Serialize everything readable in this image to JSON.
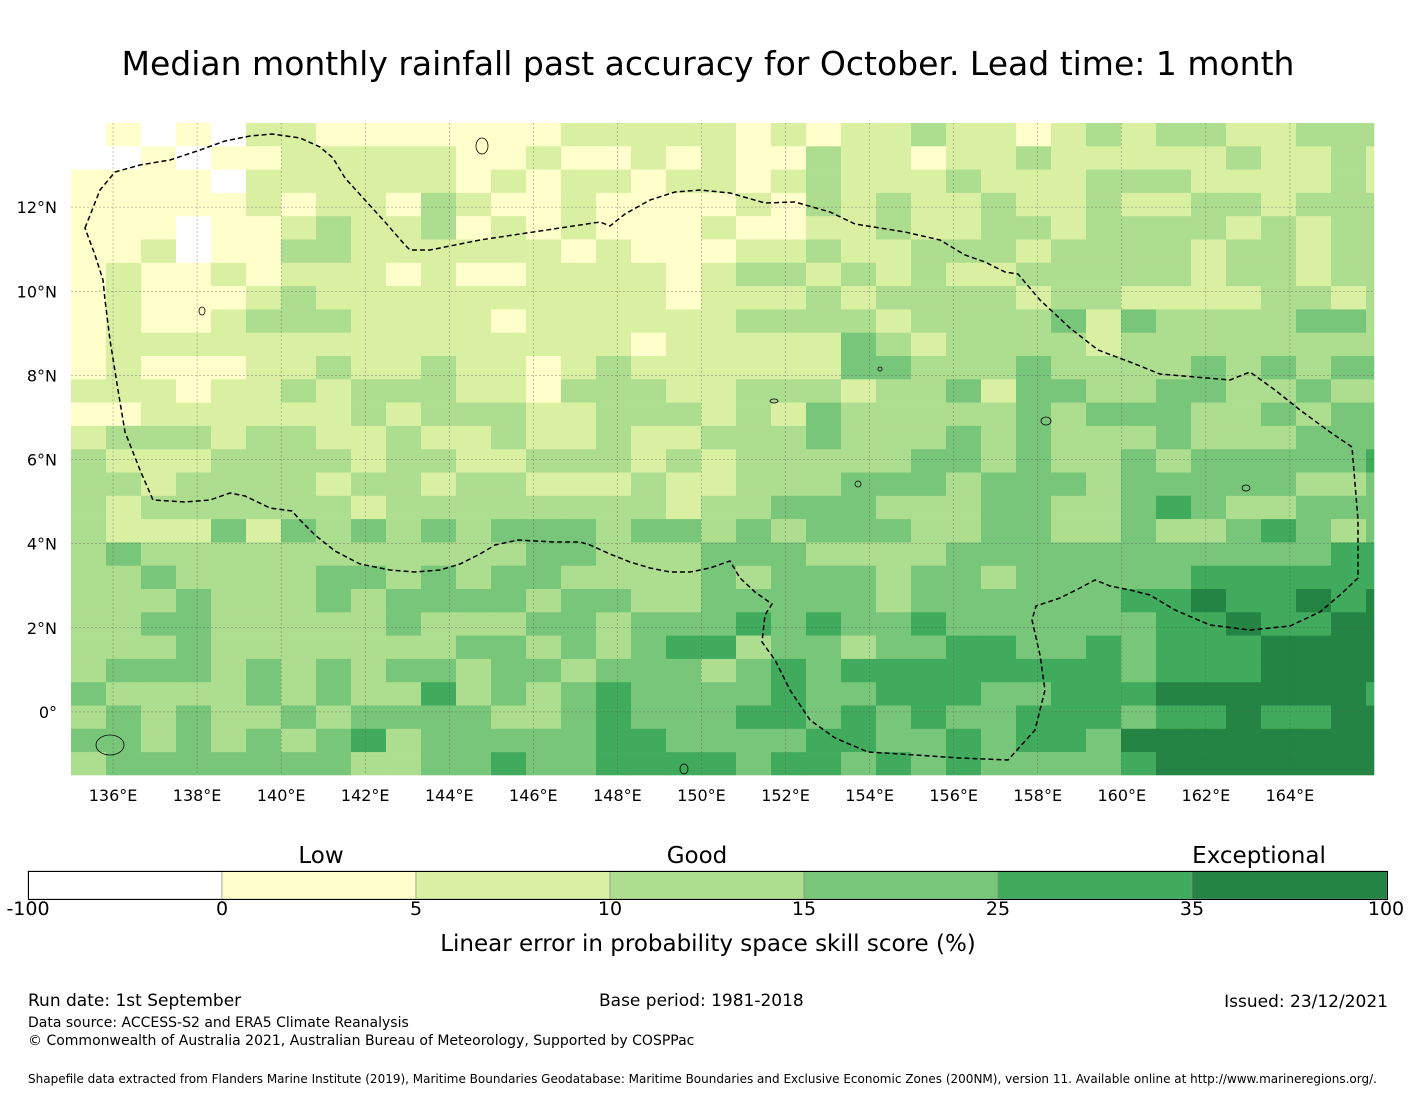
{
  "title": "Median monthly rainfall past accuracy for October. Lead time: 1 month",
  "map": {
    "lon_ticks": [
      "136°E",
      "138°E",
      "140°E",
      "142°E",
      "144°E",
      "146°E",
      "148°E",
      "150°E",
      "152°E",
      "154°E",
      "156°E",
      "158°E",
      "160°E",
      "162°E",
      "164°E"
    ],
    "lat_ticks": [
      "12°N",
      "10°N",
      "8°N",
      "6°N",
      "4°N",
      "2°N",
      "0°"
    ],
    "extent": {
      "lon_min": 135,
      "lon_max": 166,
      "lat_min": -1.5,
      "lat_max": 14
    },
    "grid_resolution_deg": 0.83,
    "field_description": "Linear error in probability space skill score by grid cell; higher values toward the southeast, lower toward the northwest",
    "boundary": "EEZ dashed outline"
  },
  "colorbar": {
    "categories": [
      "Low",
      "Good",
      "Exceptional"
    ],
    "tick_labels": [
      "-100",
      "0",
      "5",
      "10",
      "15",
      "25",
      "35",
      "100"
    ],
    "colors": [
      "#ffffff",
      "#ffffcc",
      "#d9f0a3",
      "#addd8e",
      "#78c679",
      "#41ab5d",
      "#238443"
    ],
    "label": "Linear error in probability space skill score (%)"
  },
  "footer": {
    "run_date": "Run date: 1st September",
    "base_period": "Base period: 1981-2018",
    "issued": "Issued: 23/12/2021",
    "data_source": "Data source: ACCESS-S2 and ERA5 Climate Reanalysis",
    "copyright": "© Commonwealth of Australia 2021, Australian Bureau of Meteorology, Supported by COSPPac",
    "shapefile": "Shapefile data extracted from Flanders Marine Institute (2019), Maritime Boundaries Geodatabase: Maritime Boundaries and Exclusive Economic Zones (200NM), version 11. Available online at http://www.marineregions.org/."
  }
}
